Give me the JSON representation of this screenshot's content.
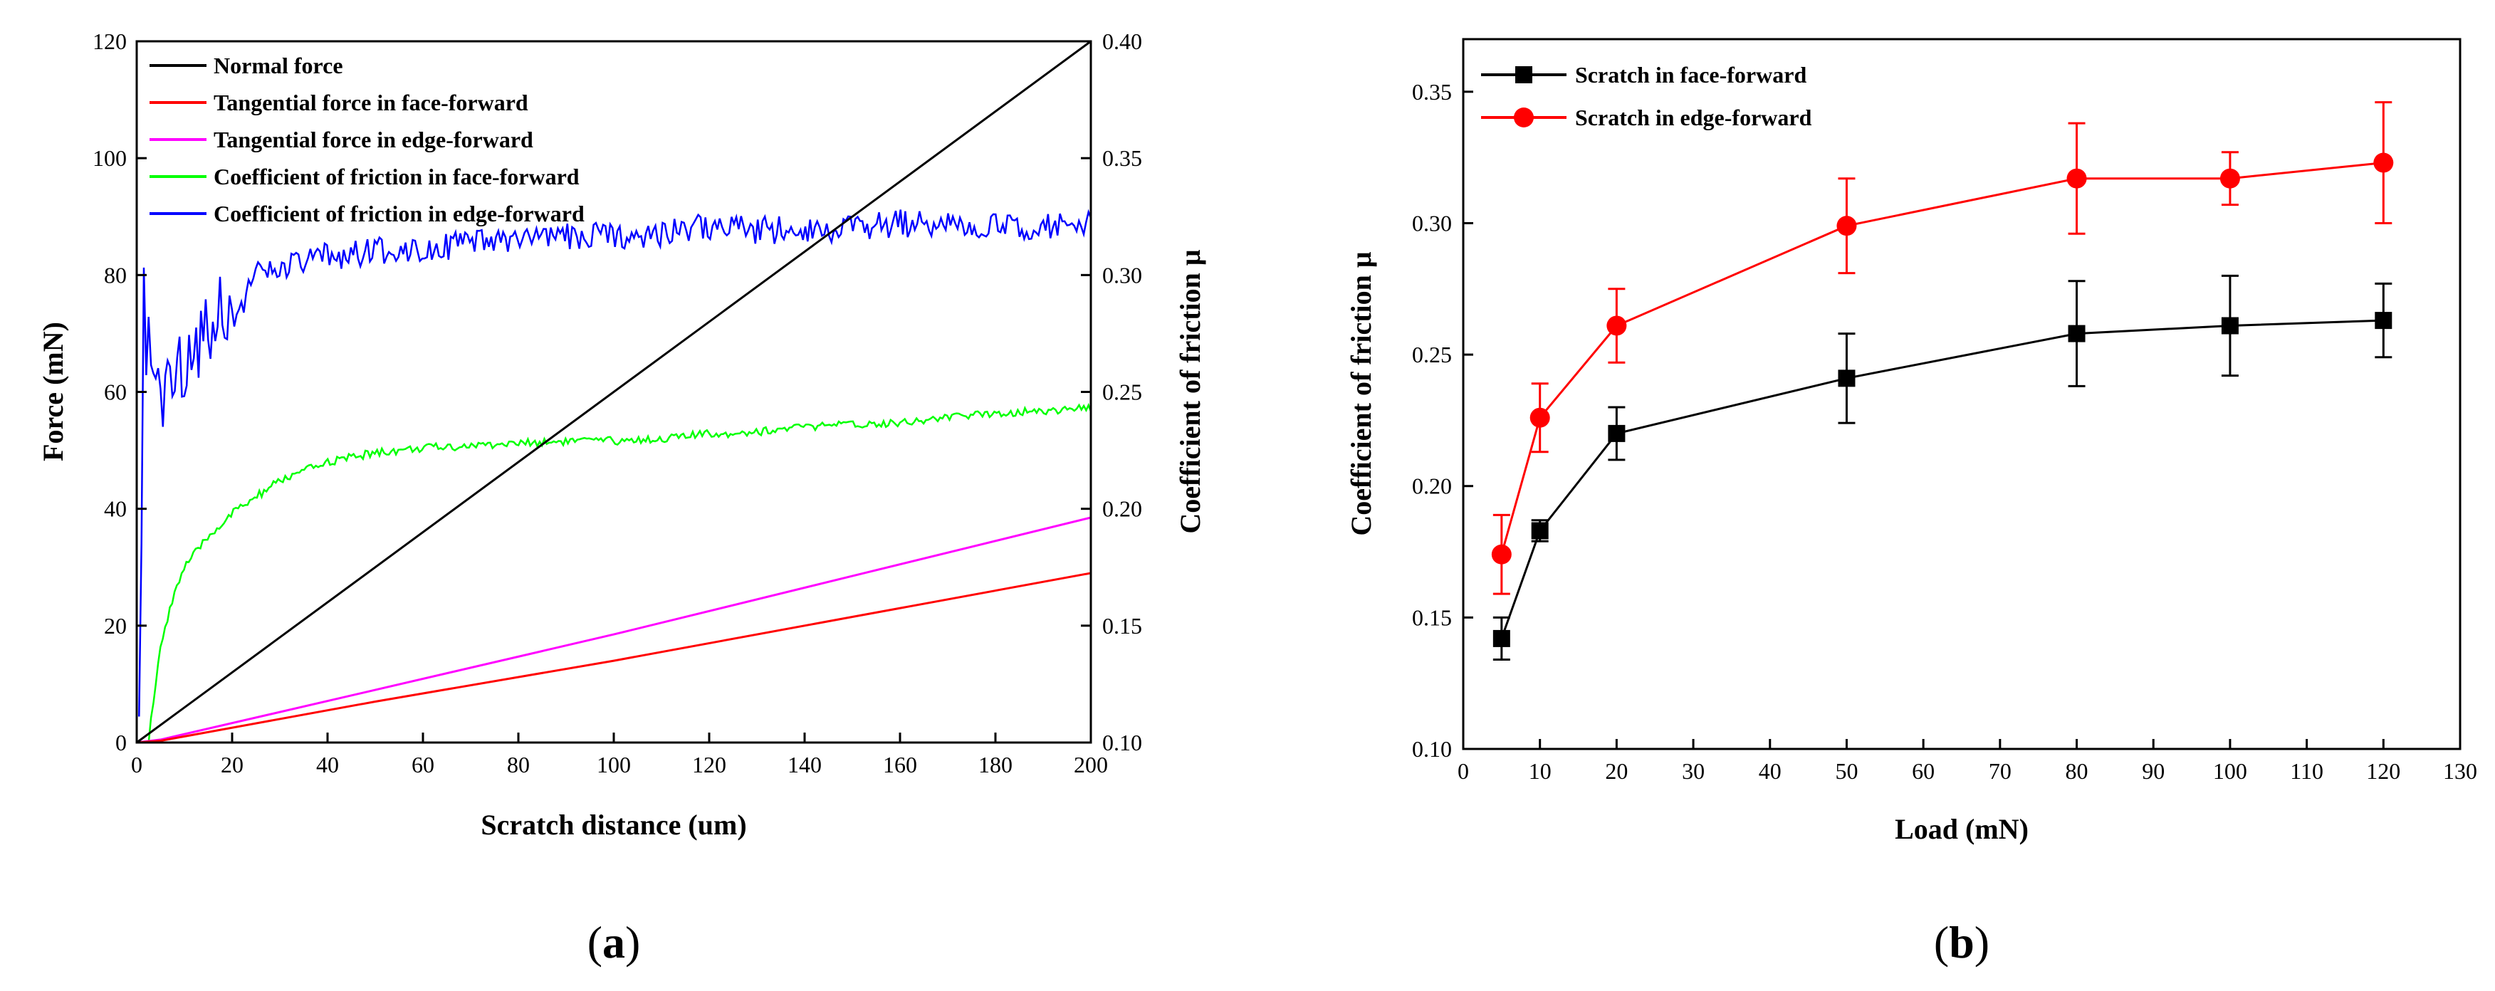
{
  "chart_data": [
    {
      "type": "line",
      "panel_label": "(a)",
      "panel_letter": "a",
      "xlabel": "Scratch distance (um)",
      "ylabel": "Force (mN)",
      "y2label": "Coefficient of friction μ",
      "xlim": [
        0,
        200
      ],
      "ylim": [
        0,
        120
      ],
      "y2lim": [
        0.1,
        0.4
      ],
      "xticks": [
        0,
        20,
        40,
        60,
        80,
        100,
        120,
        140,
        160,
        180,
        200
      ],
      "yticks": [
        0,
        20,
        40,
        60,
        80,
        100,
        120
      ],
      "y2ticks": [
        "0.10",
        "0.15",
        "0.20",
        "0.25",
        "0.30",
        "0.35",
        "0.40"
      ],
      "legend_position": "top-left",
      "series": [
        {
          "name": "Normal force",
          "color": "#000000",
          "axis": "left",
          "x": [
            0,
            200
          ],
          "y": [
            0,
            120
          ]
        },
        {
          "name": "Tangential force in face-forward",
          "color": "#ff0000",
          "axis": "left",
          "x": [
            0,
            5,
            50,
            100,
            150,
            200
          ],
          "y": [
            0,
            0.3,
            7,
            14,
            21.5,
            29
          ]
        },
        {
          "name": "Tangential force in edge-forward",
          "color": "#ff00ff",
          "axis": "left",
          "x": [
            0,
            5,
            50,
            100,
            150,
            200
          ],
          "y": [
            0,
            0.5,
            9,
            18.5,
            28.5,
            38.5
          ]
        },
        {
          "name": "Coefficient of friction in face-forward",
          "color": "#00ff00",
          "axis": "right",
          "x": [
            2.5,
            3,
            4,
            5,
            6,
            8,
            10,
            15,
            20,
            25,
            30,
            40,
            50,
            60,
            70,
            80,
            90,
            100,
            110,
            120,
            130,
            140,
            150,
            160,
            170,
            180,
            190,
            200
          ],
          "y": [
            0.1,
            0.11,
            0.125,
            0.14,
            0.15,
            0.165,
            0.175,
            0.188,
            0.198,
            0.205,
            0.212,
            0.22,
            0.224,
            0.226,
            0.227,
            0.228,
            0.229,
            0.229,
            0.23,
            0.232,
            0.233,
            0.235,
            0.236,
            0.237,
            0.239,
            0.241,
            0.242,
            0.243
          ]
        },
        {
          "name": "Coefficient of friction in edge-forward",
          "color": "#0000ff",
          "axis": "right",
          "x": [
            0.5,
            1,
            1.5,
            2,
            2.5,
            3,
            4,
            5,
            6,
            8,
            10,
            12,
            15,
            18,
            20,
            25,
            30,
            35,
            40,
            50,
            60,
            70,
            80,
            90,
            100,
            110,
            120,
            130,
            140,
            150,
            160,
            170,
            180,
            190,
            200
          ],
          "y": [
            0.1,
            0.18,
            0.29,
            0.24,
            0.28,
            0.25,
            0.27,
            0.24,
            0.26,
            0.25,
            0.265,
            0.27,
            0.28,
            0.29,
            0.28,
            0.3,
            0.302,
            0.305,
            0.308,
            0.31,
            0.312,
            0.313,
            0.315,
            0.316,
            0.317,
            0.318,
            0.321,
            0.319,
            0.32,
            0.32,
            0.322,
            0.321,
            0.321,
            0.321,
            0.321
          ]
        }
      ]
    },
    {
      "type": "line",
      "panel_label": "(b)",
      "panel_letter": "b",
      "xlabel": "Load (mN)",
      "ylabel": "Coefficient of friction μ",
      "xlim": [
        0,
        130
      ],
      "ylim": [
        0.1,
        0.37
      ],
      "xticks": [
        0,
        10,
        20,
        30,
        40,
        50,
        60,
        70,
        80,
        90,
        100,
        110,
        120,
        130
      ],
      "yticks": [
        "0.10",
        "0.15",
        "0.20",
        "0.25",
        "0.30",
        "0.35"
      ],
      "legend_position": "top-left",
      "series": [
        {
          "name": "Scratch in face-forward",
          "color": "#000000",
          "marker": "square",
          "x": [
            5,
            10,
            20,
            50,
            80,
            100,
            120
          ],
          "y": [
            0.142,
            0.183,
            0.22,
            0.241,
            0.258,
            0.261,
            0.263
          ],
          "err": [
            0.008,
            0.004,
            0.01,
            0.017,
            0.02,
            0.019,
            0.014
          ]
        },
        {
          "name": "Scratch in edge-forward",
          "color": "#ff0000",
          "marker": "circle",
          "x": [
            5,
            10,
            20,
            50,
            80,
            100,
            120
          ],
          "y": [
            0.174,
            0.226,
            0.261,
            0.299,
            0.317,
            0.317,
            0.323
          ],
          "err": [
            0.015,
            0.013,
            0.014,
            0.018,
            0.021,
            0.01,
            0.023
          ]
        }
      ]
    }
  ]
}
